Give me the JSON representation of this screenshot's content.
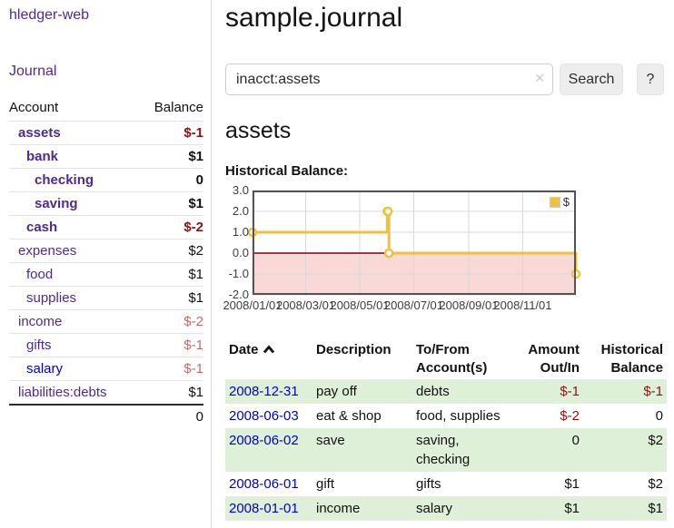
{
  "colors": {
    "accent_purple": "#4e2a8e",
    "link_blue": "#0000cc",
    "negative_red": "#8e1212",
    "negative_dim_red": "#c26a6e",
    "row_stripe_green": "#dff0d8",
    "series_gold": "#edc240",
    "chart_border": "#545454",
    "chart_grid": "#d8d8d8",
    "chart_negative_fill": "#f9d8d8",
    "chart_zero_line": "#800000"
  },
  "app": {
    "brand": "hledger-web",
    "nav_journal": "Journal"
  },
  "sidebar": {
    "headers": {
      "account": "Account",
      "balance": "Balance"
    },
    "accounts": [
      {
        "name": "assets",
        "indent": 1,
        "bold": true,
        "blue": false,
        "balance": "$-1",
        "balance_style": "neg"
      },
      {
        "name": "bank",
        "indent": 2,
        "bold": true,
        "blue": false,
        "balance": "$1",
        "balance_style": ""
      },
      {
        "name": "checking",
        "indent": 3,
        "bold": true,
        "blue": false,
        "balance": "0",
        "balance_style": ""
      },
      {
        "name": "saving",
        "indent": 3,
        "bold": true,
        "blue": false,
        "balance": "$1",
        "balance_style": ""
      },
      {
        "name": "cash",
        "indent": 2,
        "bold": true,
        "blue": false,
        "balance": "$-2",
        "balance_style": "neg"
      },
      {
        "name": "expenses",
        "indent": 1,
        "bold": false,
        "blue": false,
        "balance": "$2",
        "balance_style": ""
      },
      {
        "name": "food",
        "indent": 2,
        "bold": false,
        "blue": false,
        "balance": "$1",
        "balance_style": ""
      },
      {
        "name": "supplies",
        "indent": 2,
        "bold": false,
        "blue": false,
        "balance": "$1",
        "balance_style": ""
      },
      {
        "name": "income",
        "indent": 1,
        "bold": false,
        "blue": false,
        "balance": "$-2",
        "balance_style": "neg-dim"
      },
      {
        "name": "gifts",
        "indent": 2,
        "bold": false,
        "blue": false,
        "balance": "$-1",
        "balance_style": "neg-dim"
      },
      {
        "name": "salary",
        "indent": 2,
        "bold": false,
        "blue": true,
        "balance": "$-1",
        "balance_style": "neg-dim"
      },
      {
        "name": "liabilities:debts",
        "indent": 1,
        "bold": false,
        "blue": false,
        "balance": "$1",
        "balance_style": ""
      }
    ],
    "total": "0"
  },
  "header": {
    "title": "sample.journal"
  },
  "search": {
    "value": "inacct:assets",
    "clear_icon": "✕",
    "button_label": "Search",
    "help_label": "?"
  },
  "account_page": {
    "heading": "assets",
    "chart_label": "Historical Balance:"
  },
  "chart_data": {
    "type": "line",
    "title": "Historical Balance:",
    "series": [
      {
        "name": "$",
        "color": "#edc240",
        "step": "after",
        "points": [
          {
            "x": "2008-01-01",
            "y": 1
          },
          {
            "x": "2008-06-01",
            "y": 2
          },
          {
            "x": "2008-06-02",
            "y": 2
          },
          {
            "x": "2008-06-03",
            "y": 0
          },
          {
            "x": "2008-12-31",
            "y": -1
          }
        ]
      }
    ],
    "xlim": [
      "2008-01-01",
      "2008-12-31"
    ],
    "ylim": [
      -2,
      3
    ],
    "x_ticks": [
      "2008/01/01",
      "2008/03/01",
      "2008/05/01",
      "2008/07/01",
      "2008/09/01",
      "2008/11/01"
    ],
    "y_ticks": [
      "3.0",
      "2.0",
      "1.0",
      "0.0",
      "-1.0",
      "-2.0"
    ],
    "grid": true,
    "legend_position": "top-right",
    "grid_color": "#d8d8d8",
    "negative_region_fill": "#f9d8d8",
    "zero_line_color": "#800000",
    "border_color": "#545454"
  },
  "register": {
    "headers": {
      "date": "Date",
      "sort_icon": "chevron-up",
      "description": "Description",
      "tofrom": "To/From Account(s)",
      "amount": "Amount Out/In",
      "balance": "Historical Balance"
    },
    "rows": [
      {
        "date": "2008-12-31",
        "description": "pay off",
        "accounts": "debts",
        "amount": "$-1",
        "amount_negative": true,
        "balance": "$-1",
        "balance_negative": true
      },
      {
        "date": "2008-06-03",
        "description": "eat & shop",
        "accounts": "food, supplies",
        "amount": "$-2",
        "amount_negative": true,
        "balance": "0",
        "balance_negative": false
      },
      {
        "date": "2008-06-02",
        "description": "save",
        "accounts": "saving, checking",
        "amount": "0",
        "amount_negative": false,
        "balance": "$2",
        "balance_negative": false
      },
      {
        "date": "2008-06-01",
        "description": "gift",
        "accounts": "gifts",
        "amount": "$1",
        "amount_negative": false,
        "balance": "$2",
        "balance_negative": false
      },
      {
        "date": "2008-01-01",
        "description": "income",
        "accounts": "salary",
        "amount": "$1",
        "amount_negative": false,
        "balance": "$1",
        "balance_negative": false
      }
    ]
  }
}
